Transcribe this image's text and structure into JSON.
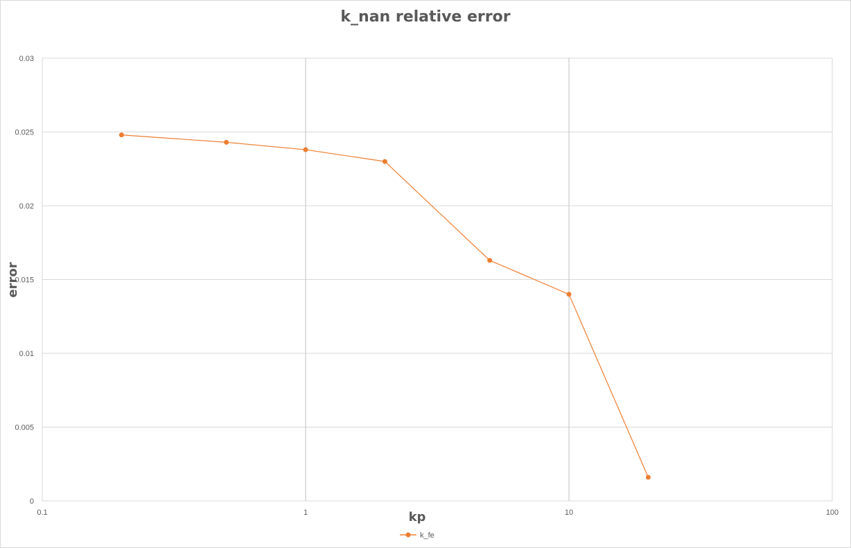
{
  "chart_data": {
    "type": "scatter",
    "title": "k_nan relative error",
    "xlabel": "kp",
    "ylabel": "error",
    "x_scale": "log",
    "xlim": [
      0.1,
      100
    ],
    "ylim": [
      0,
      0.03
    ],
    "x_ticks": [
      "0.1",
      "1",
      "10",
      "100"
    ],
    "y_ticks": [
      "0",
      "0.005",
      "0.01",
      "0.015",
      "0.02",
      "0.025",
      "0.03"
    ],
    "grid": true,
    "legend_position": "bottom",
    "series": [
      {
        "name": "k_fe",
        "color": "#ed7d31",
        "x": [
          0.2,
          0.5,
          1,
          2,
          5,
          10,
          20
        ],
        "y": [
          0.0248,
          0.0243,
          0.0238,
          0.023,
          0.0163,
          0.014,
          0.0016
        ]
      }
    ]
  }
}
